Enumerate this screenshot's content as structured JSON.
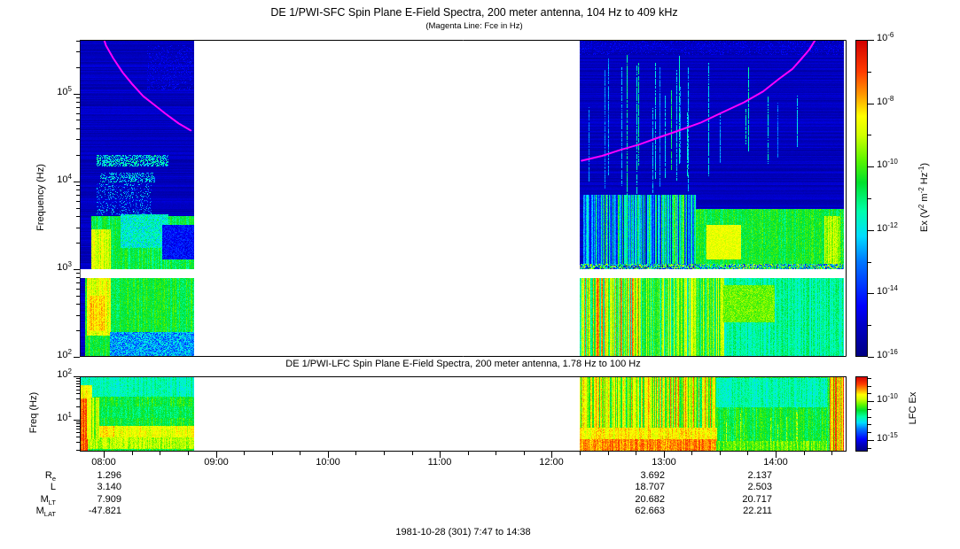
{
  "sfc": {
    "title": "DE 1/PWI-SFC  Spin Plane E-Field Spectra, 200 meter antenna, 104 Hz to 409 kHz",
    "subtitle": "(Magenta Line: Fce in Hz)",
    "ylabel": "Frequency (Hz)",
    "ytick_exponents": [
      5,
      4,
      3,
      2
    ],
    "ylim_log10_hz": [
      2.0,
      5.612
    ],
    "colorbar": {
      "label_parts": [
        {
          "t": "Ex (V"
        },
        {
          "sup": "2"
        },
        {
          "t": " m"
        },
        {
          "sup": "-2"
        },
        {
          "t": " Hz"
        },
        {
          "sup": "-1"
        },
        {
          "t": ")"
        }
      ],
      "labeled_exponents": [
        -6,
        -8,
        -10,
        -12,
        -14,
        -16
      ],
      "minor_exponents": [
        -7,
        -9,
        -11,
        -13,
        -15
      ],
      "lim_exponents": [
        -16,
        -6
      ]
    }
  },
  "lfc": {
    "title": "DE 1/PWI-LFC  Spin Plane E-Field Spectra, 200 meter antenna, 1.78 Hz to 100 Hz",
    "ylabel": "Freq (Hz)",
    "ytick_exponents": [
      2,
      1
    ],
    "ylim_log10_hz": [
      0.25,
      2.0
    ],
    "colorbar": {
      "label": "LFC Ex",
      "labeled_exponents": [
        -10,
        -15
      ],
      "minor_exponents": [
        -7,
        -8,
        -9,
        -11,
        -12,
        -13,
        -14,
        -16
      ],
      "lim_exponents": [
        -16.5,
        -6.8
      ]
    }
  },
  "time_axis": {
    "start_day_min": 467,
    "end_day_min": 878,
    "minor_step_min": 15,
    "hour_tick_labels": [
      "08:00",
      "09:00",
      "10:00",
      "11:00",
      "12:00",
      "13:00",
      "14:00"
    ]
  },
  "ephemeris": {
    "rows": [
      {
        "label_parts": [
          {
            "t": "R"
          },
          {
            "sub": "e"
          }
        ],
        "values": [
          "1.296",
          "3.692",
          "2.137"
        ]
      },
      {
        "label_parts": [
          {
            "t": "L"
          }
        ],
        "values": [
          "3.140",
          "18.707",
          "2.503"
        ]
      },
      {
        "label_parts": [
          {
            "t": "M"
          },
          {
            "sub": "LT"
          }
        ],
        "values": [
          "7.909",
          "20.682",
          "20.717"
        ]
      },
      {
        "label_parts": [
          {
            "t": "M"
          },
          {
            "sub": "LAT"
          }
        ],
        "values": [
          "-47.821",
          "62.663",
          "22.211"
        ]
      }
    ]
  },
  "footer": {
    "datestamp": "1981-10-28 (301) 7:47 to 14:38"
  },
  "colors": {
    "fce_line": "#ff00ff",
    "axis": "#000000",
    "background": "#ffffff",
    "colormap_anchors": [
      [
        0.0,
        [
          0,
          0,
          130
        ]
      ],
      [
        0.1,
        [
          0,
          0,
          200
        ]
      ],
      [
        0.16,
        [
          0,
          0,
          255
        ]
      ],
      [
        0.3,
        [
          0,
          120,
          255
        ]
      ],
      [
        0.38,
        [
          0,
          220,
          255
        ]
      ],
      [
        0.46,
        [
          0,
          255,
          170
        ]
      ],
      [
        0.55,
        [
          0,
          225,
          45
        ]
      ],
      [
        0.62,
        [
          90,
          245,
          0
        ]
      ],
      [
        0.7,
        [
          210,
          255,
          0
        ]
      ],
      [
        0.76,
        [
          255,
          255,
          0
        ]
      ],
      [
        0.83,
        [
          255,
          150,
          0
        ]
      ],
      [
        0.9,
        [
          255,
          60,
          0
        ]
      ],
      [
        1.0,
        [
          210,
          0,
          0
        ]
      ]
    ]
  },
  "chart_data": [
    {
      "type": "heatmap",
      "subtype": "spectrogram",
      "panel": "DE 1/PWI-SFC",
      "x_range_time": [
        "07:47",
        "14:38"
      ],
      "y_scale": "log",
      "y_range_hz": [
        100,
        409000
      ],
      "value_range": [
        1e-16,
        1e-06
      ],
      "segments_minutes": [
        [
          0,
          61
        ],
        [
          268,
          409
        ]
      ],
      "data_gap_minutes": [
        [
          61,
          268
        ]
      ],
      "white_band_log10hz": [
        2.91,
        2.995
      ],
      "fce_segments": [
        [
          [
            11,
            5.75
          ],
          [
            14,
            5.55
          ],
          [
            18,
            5.4
          ],
          [
            23,
            5.24
          ],
          [
            28,
            5.11
          ],
          [
            34,
            4.97
          ],
          [
            40,
            4.87
          ],
          [
            46,
            4.77
          ],
          [
            53,
            4.66
          ],
          [
            59.5,
            4.58
          ]
        ],
        [
          [
            269,
            4.235
          ],
          [
            280,
            4.29
          ],
          [
            290,
            4.36
          ],
          [
            300,
            4.42
          ],
          [
            309,
            4.49
          ],
          [
            320,
            4.57
          ],
          [
            333,
            4.67
          ],
          [
            344,
            4.78
          ],
          [
            356,
            4.9
          ],
          [
            366,
            5.02
          ],
          [
            375,
            5.17
          ],
          [
            382,
            5.28
          ],
          [
            387,
            5.4
          ],
          [
            391,
            5.5
          ],
          [
            394.5,
            5.62
          ]
        ]
      ],
      "bands": [
        {
          "t": [
            0,
            61
          ],
          "l": [
            2.0,
            5.612
          ],
          "v": 0.085,
          "n": 0.035,
          "style": "hstripes"
        },
        {
          "t": [
            3,
            61
          ],
          "l": [
            2.0,
            2.91
          ],
          "v": 0.55,
          "n": 0.05,
          "style": "vstreaks"
        },
        {
          "t": [
            4,
            16
          ],
          "l": [
            2.25,
            2.91
          ],
          "v": 0.73,
          "n": 0.05,
          "style": "vstreaks"
        },
        {
          "t": [
            5,
            13
          ],
          "l": [
            2.3,
            2.7
          ],
          "v": 0.79,
          "n": 0.04,
          "style": "vstreaks"
        },
        {
          "t": [
            16,
            61
          ],
          "l": [
            2.0,
            2.28
          ],
          "v": 0.33,
          "n": 0.12,
          "style": "fill"
        },
        {
          "t": [
            6,
            61
          ],
          "l": [
            2.995,
            3.6
          ],
          "v": 0.53,
          "n": 0.06,
          "style": "vstreaks"
        },
        {
          "t": [
            6,
            16
          ],
          "l": [
            2.995,
            3.45
          ],
          "v": 0.71,
          "n": 0.05,
          "style": "vstreaks"
        },
        {
          "t": [
            22,
            47
          ],
          "l": [
            3.25,
            3.62
          ],
          "v": 0.43,
          "n": 0.09,
          "style": "fill"
        },
        {
          "t": [
            44,
            61
          ],
          "l": [
            3.12,
            3.5
          ],
          "v": 0.17,
          "n": 0.07,
          "style": "fill"
        },
        {
          "t": [
            9,
            47
          ],
          "l": [
            4.18,
            4.3
          ],
          "v": 0.42,
          "n": 0.1,
          "style": "speckle",
          "p": 0.55
        },
        {
          "t": [
            11,
            40
          ],
          "l": [
            4.0,
            4.1
          ],
          "v": 0.38,
          "n": 0.1,
          "style": "speckle",
          "p": 0.4
        },
        {
          "t": [
            9,
            38
          ],
          "l": [
            3.62,
            3.98
          ],
          "v": 0.3,
          "n": 0.12,
          "style": "speckle",
          "p": 0.22
        },
        {
          "t": [
            36,
            60
          ],
          "l": [
            5.05,
            5.55
          ],
          "v": 0.14,
          "n": 0.05,
          "style": "speckle",
          "p": 0.25
        },
        {
          "t": [
            268,
            409
          ],
          "l": [
            2.995,
            5.612
          ],
          "v": 0.085,
          "n": 0.035,
          "style": "hstripes"
        },
        {
          "t": [
            268,
            409
          ],
          "l": [
            2.0,
            2.91
          ],
          "v": 0.47,
          "n": 0.05,
          "style": "vstreaks"
        },
        {
          "t": [
            269,
            300
          ],
          "l": [
            2.0,
            2.91
          ],
          "v": 0.6,
          "n": 0.22,
          "style": "vcols",
          "range": [
            0.42,
            0.88
          ]
        },
        {
          "t": [
            300,
            345
          ],
          "l": [
            2.0,
            2.91
          ],
          "v": 0.55,
          "n": 0.15,
          "style": "vcols",
          "range": [
            0.42,
            0.75
          ]
        },
        {
          "t": [
            345,
            372
          ],
          "l": [
            2.4,
            2.82
          ],
          "v": 0.63,
          "n": 0.05,
          "style": "fill"
        },
        {
          "t": [
            270,
            330
          ],
          "l": [
            3.05,
            3.85
          ],
          "v": 0.4,
          "n": 0.2,
          "style": "vcols",
          "range": [
            0.12,
            0.62
          ]
        },
        {
          "t": [
            330,
            409
          ],
          "l": [
            2.995,
            3.68
          ],
          "v": 0.55,
          "n": 0.05,
          "style": "vstreaks"
        },
        {
          "t": [
            336,
            354
          ],
          "l": [
            3.12,
            3.5
          ],
          "v": 0.73,
          "n": 0.04,
          "style": "fill"
        },
        {
          "t": [
            399,
            407
          ],
          "l": [
            2.995,
            3.6
          ],
          "v": 0.68,
          "n": 0.05,
          "style": "vstreaks"
        },
        {
          "t": [
            269,
            348
          ],
          "l": [
            3.85,
            5.45
          ],
          "v": 0.42,
          "n": 0.1,
          "style": "sparsecols",
          "p": 0.14
        },
        {
          "t": [
            348,
            395
          ],
          "l": [
            4.2,
            5.3
          ],
          "v": 0.38,
          "n": 0.1,
          "style": "sparsecols",
          "p": 0.06
        },
        {
          "t": [
            268,
            409
          ],
          "l": [
            2.995,
            3.06
          ],
          "v": 0.45,
          "n": 0.3,
          "style": "speckle",
          "p": 0.85
        },
        {
          "t": [
            268,
            409
          ],
          "l": [
            5.45,
            5.612
          ],
          "v": 0.12,
          "n": 0.06,
          "style": "speckle",
          "p": 0.35
        }
      ]
    },
    {
      "type": "heatmap",
      "subtype": "spectrogram",
      "panel": "DE 1/PWI-LFC",
      "x_range_time": [
        "07:47",
        "14:38"
      ],
      "y_scale": "log",
      "y_range_hz": [
        1.78,
        100
      ],
      "value_range": [
        1e-16,
        1e-07
      ],
      "segments_minutes": [
        [
          0,
          61
        ],
        [
          268,
          409
        ]
      ],
      "data_gap_minutes": [
        [
          61,
          268
        ]
      ],
      "bands": [
        {
          "t": [
            0,
            61
          ],
          "m": [
            0.25,
            2.0
          ],
          "v": 0.55,
          "n": 0.05,
          "style": "vstreaks"
        },
        {
          "t": [
            0,
            61
          ],
          "m": [
            1.55,
            2.0
          ],
          "v": 0.45,
          "n": 0.04,
          "style": "vstreaks"
        },
        {
          "t": [
            0,
            61
          ],
          "m": [
            1.05,
            1.3
          ],
          "v": 0.52,
          "n": 0.04,
          "style": "vstreaks"
        },
        {
          "t": [
            0,
            61
          ],
          "m": [
            0.6,
            0.85
          ],
          "v": 0.73,
          "n": 0.04,
          "style": "vstreaks"
        },
        {
          "t": [
            0,
            18
          ],
          "m": [
            0.6,
            0.85
          ],
          "v": 0.77,
          "n": 0.04,
          "style": "vstreaks"
        },
        {
          "t": [
            0,
            61
          ],
          "m": [
            0.33,
            0.58
          ],
          "v": 0.68,
          "n": 0.05,
          "style": "vstreaks"
        },
        {
          "t": [
            0,
            4
          ],
          "m": [
            0.25,
            1.5
          ],
          "v": 0.88,
          "n": 0.05,
          "style": "vstreaks"
        },
        {
          "t": [
            0,
            6
          ],
          "m": [
            1.5,
            1.8
          ],
          "v": 0.74,
          "n": 0.05,
          "style": "vstreaks"
        },
        {
          "t": [
            4,
            10
          ],
          "m": [
            0.55,
            1.5
          ],
          "v": 0.66,
          "n": 0.08,
          "style": "vcols",
          "range": [
            0.58,
            0.78
          ]
        },
        {
          "t": [
            268,
            409
          ],
          "m": [
            0.25,
            2.0
          ],
          "v": 0.55,
          "n": 0.06,
          "style": "vstreaks"
        },
        {
          "t": [
            268,
            341
          ],
          "m": [
            0.55,
            2.0
          ],
          "v": 0.6,
          "n": 0.2,
          "style": "vcols",
          "range": [
            0.5,
            0.86
          ]
        },
        {
          "t": [
            268,
            341
          ],
          "m": [
            0.25,
            0.55
          ],
          "v": 0.84,
          "n": 0.05,
          "style": "vstreaks"
        },
        {
          "t": [
            268,
            341
          ],
          "m": [
            0.55,
            0.8
          ],
          "v": 0.76,
          "n": 0.05,
          "style": "vstreaks"
        },
        {
          "t": [
            341,
            400
          ],
          "m": [
            1.3,
            1.95
          ],
          "v": 0.45,
          "n": 0.04,
          "style": "vstreaks"
        },
        {
          "t": [
            341,
            400
          ],
          "m": [
            0.25,
            0.5
          ],
          "v": 0.62,
          "n": 0.05,
          "style": "vstreaks"
        },
        {
          "t": [
            345,
            398
          ],
          "m": [
            0.25,
            1.3
          ],
          "v": 0.66,
          "n": 0.06,
          "style": "sparsecols",
          "p": 0.07
        },
        {
          "t": [
            402,
            409
          ],
          "m": [
            0.25,
            2.0
          ],
          "v": 0.78,
          "n": 0.1,
          "style": "vcols",
          "range": [
            0.62,
            0.92
          ]
        }
      ]
    }
  ]
}
